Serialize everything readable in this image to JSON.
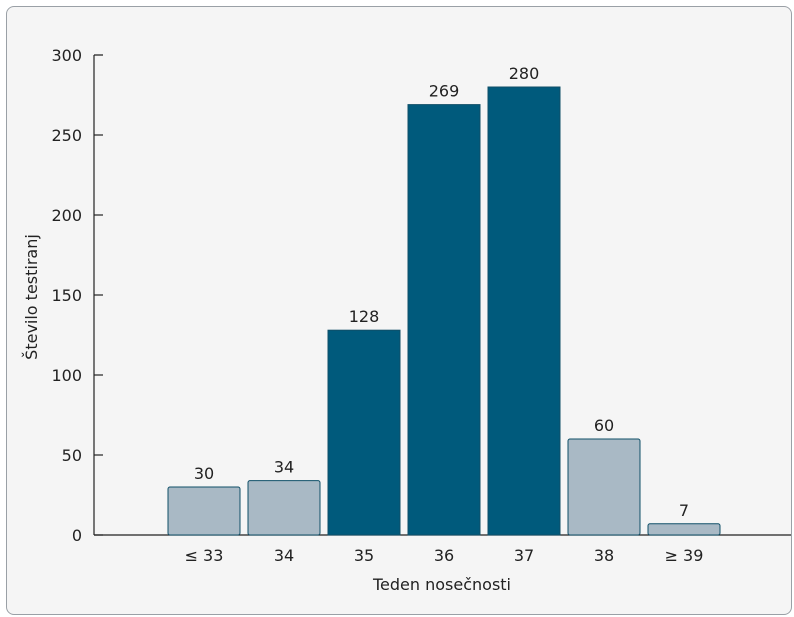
{
  "chart_data": {
    "type": "bar",
    "title": "",
    "xlabel": "Teden nosečnosti",
    "ylabel": "Število testiranj",
    "categories": [
      "≤ 33",
      "34",
      "35",
      "36",
      "37",
      "38",
      "≥ 39"
    ],
    "values": [
      30,
      34,
      128,
      269,
      280,
      60,
      7
    ],
    "highlighted": [
      false,
      false,
      true,
      true,
      true,
      false,
      false
    ],
    "ylim": [
      0,
      300
    ],
    "yticks": [
      0,
      50,
      100,
      150,
      200,
      250,
      300
    ],
    "grid": false,
    "legend": "none"
  },
  "colors": {
    "highlight_bar": "#005a7c",
    "normal_bar": "#a9b9c5",
    "bar_outline": "#0f4f68",
    "axis": "#222222"
  }
}
